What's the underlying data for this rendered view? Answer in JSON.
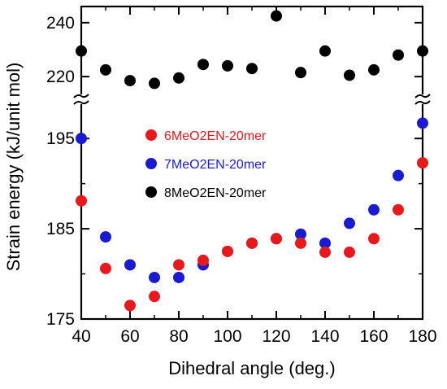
{
  "chart_data": {
    "type": "scatter",
    "xlabel": "Dihedral angle (deg.)",
    "ylabel": "Strain energy (kJ/unit mol)",
    "x": [
      40,
      50,
      60,
      70,
      80,
      90,
      100,
      110,
      120,
      130,
      140,
      150,
      160,
      170,
      180
    ],
    "xlim": [
      40,
      180
    ],
    "xticks": [
      40,
      60,
      80,
      100,
      120,
      140,
      160,
      180
    ],
    "axis_break": true,
    "ylim_lower": [
      175,
      197
    ],
    "ylim_upper": [
      214,
      246
    ],
    "yticks_lower": [
      175,
      185,
      195
    ],
    "yticks_upper": [
      220,
      240
    ],
    "legend_position": "center-left",
    "grid": false,
    "series": [
      {
        "name": "6MeO2EN-20mer",
        "color": "#e8191d",
        "values": [
          188.1,
          180.6,
          176.5,
          177.5,
          181.0,
          181.5,
          182.5,
          183.4,
          183.9,
          183.4,
          182.4,
          182.4,
          183.9,
          187.1,
          192.3
        ]
      },
      {
        "name": "7MeO2EN-20mer",
        "color": "#1a1ad0",
        "values": [
          195.0,
          184.1,
          181.0,
          179.6,
          179.6,
          181.0,
          182.5,
          183.4,
          183.9,
          184.4,
          183.4,
          185.6,
          187.1,
          190.9,
          196.7
        ]
      },
      {
        "name": "8MeO2EN-20mer",
        "color": "#000000",
        "values": [
          229.5,
          222.5,
          218.5,
          217.5,
          219.5,
          224.5,
          224.0,
          223.0,
          242.5,
          221.5,
          229.5,
          220.5,
          222.5,
          228.0,
          229.5
        ]
      }
    ]
  }
}
